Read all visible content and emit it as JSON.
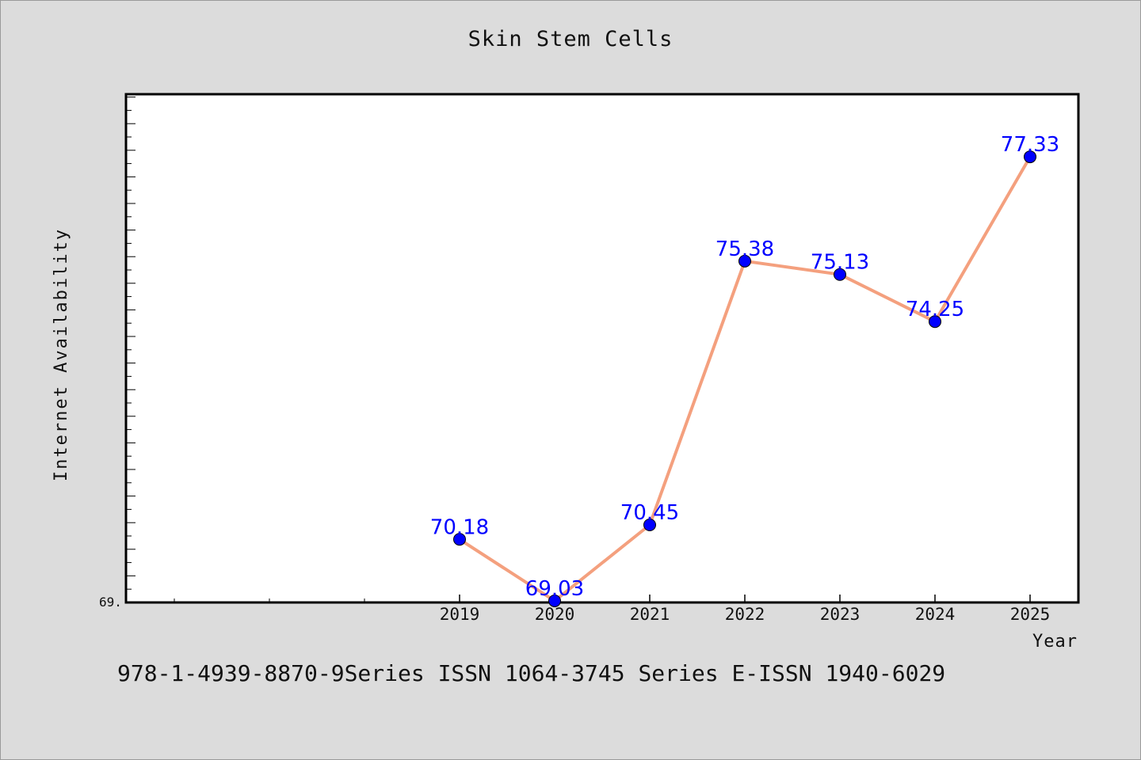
{
  "colors": {
    "background": "#dcdcdc",
    "plot_bg": "#ffffff",
    "line": "#f4a07e",
    "marker": "#0000ff",
    "data_label": "#0000ff"
  },
  "footer": "978-1-4939-8870-9Series ISSN 1064-3745 Series E-ISSN 1940-6029",
  "chart_data": {
    "type": "line",
    "title": "Skin Stem Cells",
    "xlabel": "Year",
    "ylabel": "Internet Availability",
    "x": [
      "2019",
      "2020",
      "2021",
      "2022",
      "2023",
      "2024",
      "2025"
    ],
    "series": [
      {
        "values": [
          70.18,
          69.03,
          70.45,
          75.38,
          75.13,
          74.25,
          77.33
        ],
        "labels": [
          "70.18",
          "69.03",
          "70.45",
          "75.38",
          "75.13",
          "74.25",
          "77.33"
        ]
      }
    ],
    "ylim": [
      69.0,
      78.5
    ],
    "ytick_visible_label": "69.",
    "grid": false,
    "legend": "none"
  }
}
